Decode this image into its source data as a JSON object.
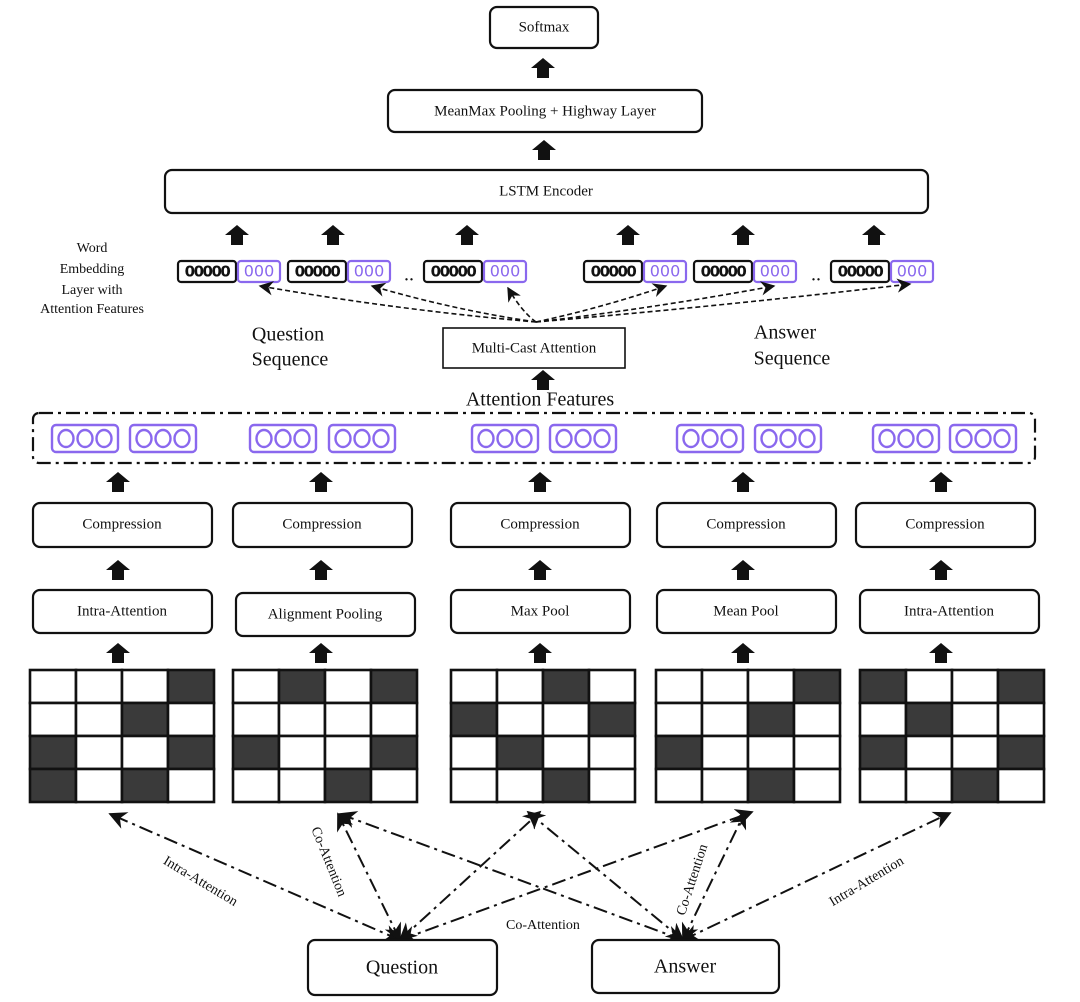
{
  "top": {
    "softmax": "Softmax",
    "pooling": "MeanMax Pooling + Highway Layer",
    "lstm": "LSTM Encoder"
  },
  "embedding": {
    "label_lines": [
      "Word",
      "Embedding",
      "Layer with",
      "Attention Features"
    ],
    "word_cells": "00000",
    "feature_cells": "000",
    "ellipsis": "..",
    "question_sequence": [
      "Question",
      "Sequence"
    ],
    "answer_sequence": [
      "Answer",
      "Sequence"
    ]
  },
  "multicast": "Multi-Cast Attention",
  "attention_features": "Attention Features",
  "branches": [
    {
      "compression": "Compression",
      "op": "Intra-Attention",
      "grid": [
        [
          0,
          0,
          0,
          1
        ],
        [
          0,
          0,
          1,
          0
        ],
        [
          1,
          0,
          0,
          1
        ],
        [
          1,
          0,
          1,
          0
        ]
      ]
    },
    {
      "compression": "Compression",
      "op": "Alignment Pooling",
      "grid": [
        [
          0,
          1,
          0,
          1
        ],
        [
          0,
          0,
          0,
          0
        ],
        [
          1,
          0,
          0,
          1
        ],
        [
          0,
          0,
          1,
          0
        ]
      ]
    },
    {
      "compression": "Compression",
      "op": "Max Pool",
      "grid": [
        [
          0,
          0,
          1,
          0
        ],
        [
          1,
          0,
          0,
          1
        ],
        [
          0,
          1,
          0,
          0
        ],
        [
          0,
          0,
          1,
          0
        ]
      ]
    },
    {
      "compression": "Compression",
      "op": "Mean Pool",
      "grid": [
        [
          0,
          0,
          0,
          1
        ],
        [
          0,
          0,
          1,
          0
        ],
        [
          1,
          0,
          0,
          0
        ],
        [
          0,
          0,
          1,
          0
        ]
      ]
    },
    {
      "compression": "Compression",
      "op": "Intra-Attention",
      "grid": [
        [
          1,
          0,
          0,
          1
        ],
        [
          0,
          1,
          0,
          0
        ],
        [
          1,
          0,
          0,
          1
        ],
        [
          0,
          0,
          1,
          0
        ]
      ]
    }
  ],
  "edge_labels": {
    "q_intra": "Intra-Attention",
    "q_co": "Co-Attention",
    "co_center": "Co-Attention",
    "a_co": "Co-Attention",
    "a_intra": "Intra-Attention"
  },
  "inputs": {
    "question": "Question",
    "answer": "Answer"
  },
  "colors": {
    "feature": "#8a68ee",
    "dark_cell": "#3a3a3a",
    "stroke": "#111111"
  }
}
